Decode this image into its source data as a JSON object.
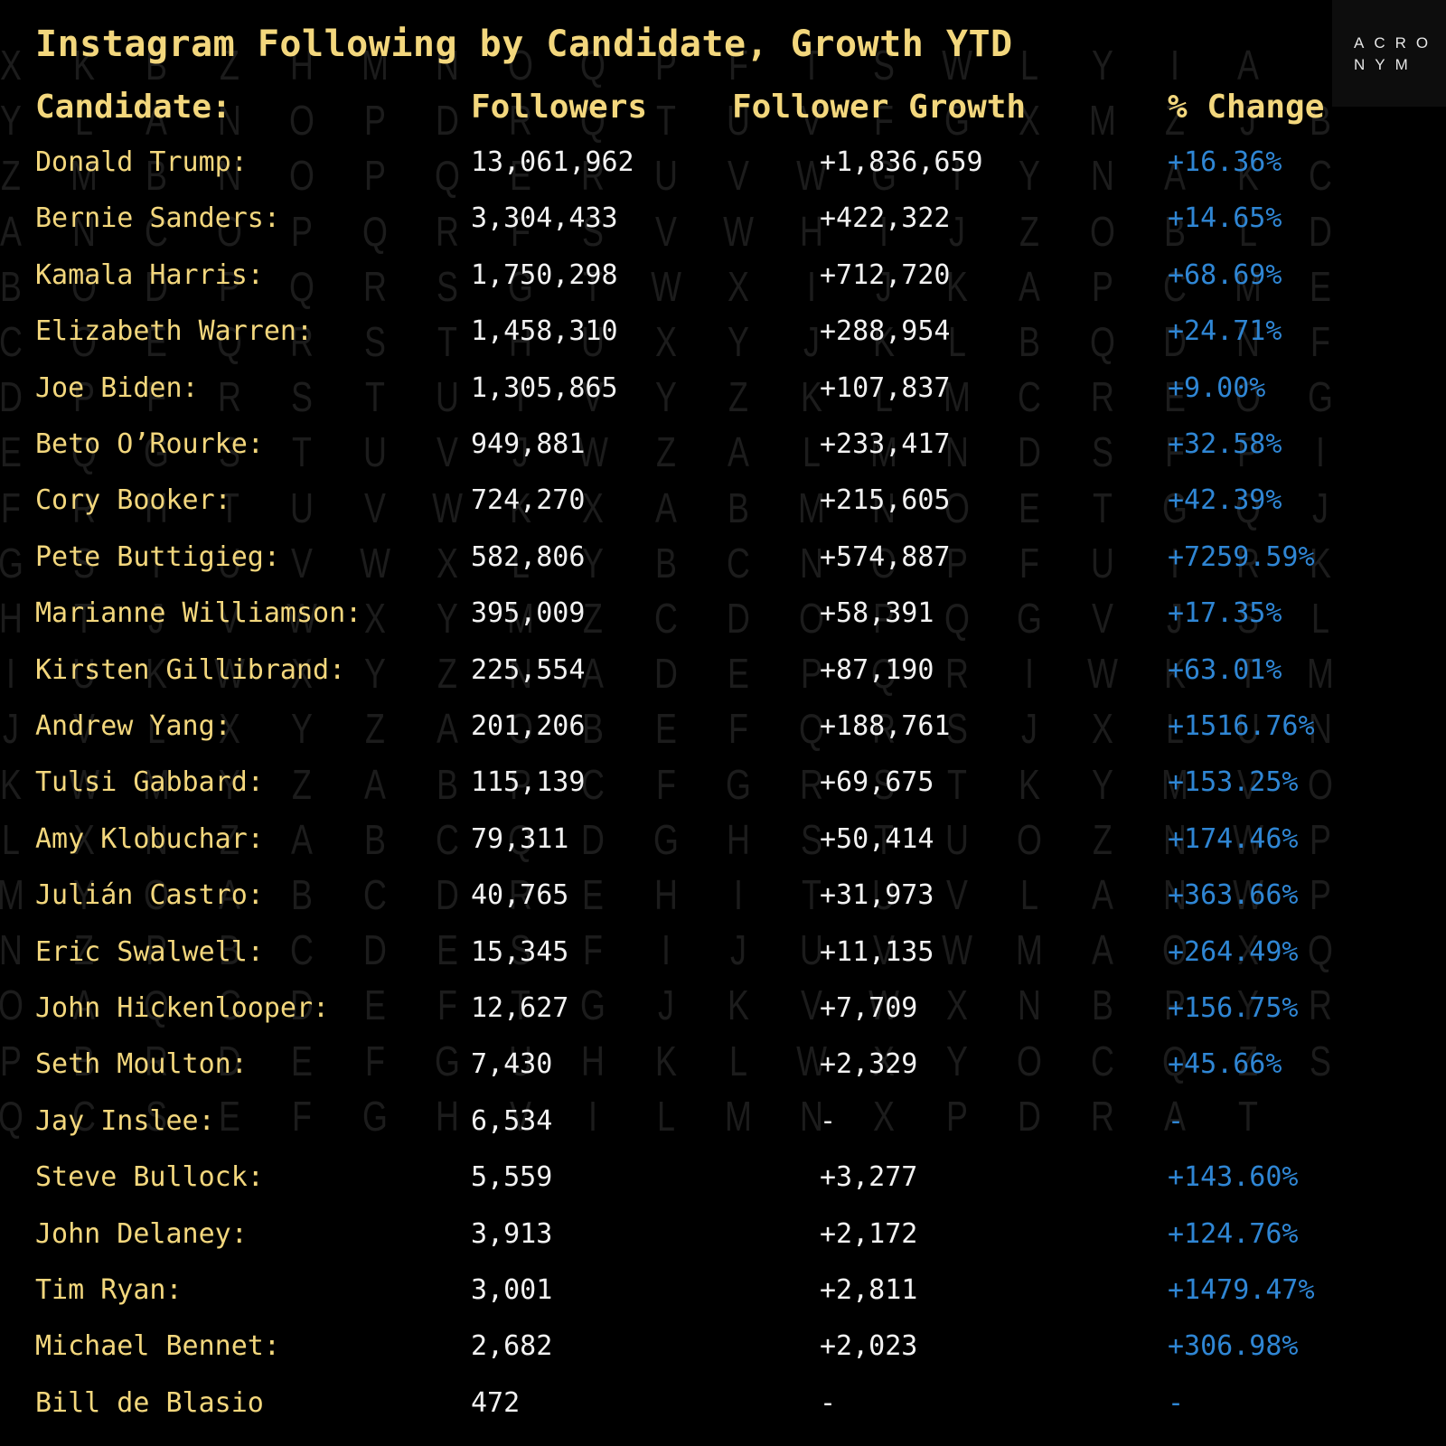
{
  "title": "Instagram Following by Candidate, Growth YTD",
  "logo": {
    "line1": "ACRO",
    "line2": "NYM"
  },
  "columns": {
    "candidate": "Candidate:",
    "followers": "Followers",
    "growth": "Follower Growth",
    "pct": "% Change"
  },
  "rows": [
    {
      "name": "Donald Trump:",
      "followers": "13,061,962",
      "growth": "+1,836,659",
      "pct": "+16.36%"
    },
    {
      "name": "Bernie Sanders:",
      "followers": "3,304,433",
      "growth": "+422,322",
      "pct": "+14.65%"
    },
    {
      "name": "Kamala Harris:",
      "followers": "1,750,298",
      "growth": "+712,720",
      "pct": "+68.69%"
    },
    {
      "name": "Elizabeth Warren:",
      "followers": "1,458,310",
      "growth": "+288,954",
      "pct": "+24.71%"
    },
    {
      "name": "Joe Biden:",
      "followers": "1,305,865",
      "growth": "+107,837",
      "pct": "+9.00%"
    },
    {
      "name": "Beto O’Rourke:",
      "followers": "949,881",
      "growth": "+233,417",
      "pct": "+32.58%"
    },
    {
      "name": "Cory Booker:",
      "followers": "724,270",
      "growth": "+215,605",
      "pct": "+42.39%"
    },
    {
      "name": "Pete Buttigieg:",
      "followers": "582,806",
      "growth": "+574,887",
      "pct": "+7259.59%"
    },
    {
      "name": "Marianne Williamson:",
      "followers": "395,009",
      "growth": "+58,391",
      "pct": "+17.35%"
    },
    {
      "name": "Kirsten Gillibrand:",
      "followers": "225,554",
      "growth": "+87,190",
      "pct": "+63.01%"
    },
    {
      "name": "Andrew Yang:",
      "followers": "201,206",
      "growth": "+188,761",
      "pct": "+1516.76%"
    },
    {
      "name": "Tulsi Gabbard:",
      "followers": "115,139",
      "growth": "+69,675",
      "pct": "+153.25%"
    },
    {
      "name": "Amy Klobuchar:",
      "followers": "79,311",
      "growth": "+50,414",
      "pct": "+174.46%"
    },
    {
      "name": "Julián Castro:",
      "followers": "40,765",
      "growth": "+31,973",
      "pct": "+363.66%"
    },
    {
      "name": "Eric Swalwell:",
      "followers": "15,345",
      "growth": "+11,135",
      "pct": "+264.49%"
    },
    {
      "name": "John Hickenlooper:",
      "followers": "12,627",
      "growth": "+7,709",
      "pct": "+156.75%"
    },
    {
      "name": "Seth Moulton:",
      "followers": "7,430",
      "growth": "+2,329",
      "pct": "+45.66%"
    },
    {
      "name": "Jay Inslee:",
      "followers": "6,534",
      "growth": "-",
      "pct": "-"
    },
    {
      "name": "Steve Bullock:",
      "followers": "5,559",
      "growth": "+3,277",
      "pct": "+143.60%"
    },
    {
      "name": "John Delaney:",
      "followers": "3,913",
      "growth": "+2,172",
      "pct": "+124.76%"
    },
    {
      "name": "Tim Ryan:",
      "followers": "3,001",
      "growth": "+2,811",
      "pct": "+1479.47%"
    },
    {
      "name": "Michael Bennet:",
      "followers": "2,682",
      "growth": "+2,023",
      "pct": "+306.98%"
    },
    {
      "name": "Bill de Blasio",
      "followers": "472",
      "growth": "-",
      "pct": "-"
    }
  ],
  "background_letters": [
    "XKBZHMNOQPFTSWLYIA",
    "YLANOPDRQTUVFGXMZJB",
    "ZMBNOPQERUVWGIYNAKC",
    "ANCOPQRFSVWHIJZOBLD",
    "BODPQRSGTWXIJKAPCME",
    "COEQRSTHUXYJKLBQDNF",
    "DPFRSTUIVYZKLMCREOG",
    "EQGSTUVJWZALMNDSFPI",
    "FRHTUVWKXABMNOETGQJ",
    "GSIUVWXLYBCNOPFUIRK",
    "HTJVWXYMZCDOPQGVJSL",
    "IUKWXYZNADEPQRIWKTM",
    "JVLXYZAOBEFQRSJXLUN",
    "KWMYZABPCFGRSTKYMVO",
    "LXNZABCQDGHSTUOZNWP",
    "MYOABCDREHITUVLANWP",
    "NZPBCDESFIJUVWMAOXQ",
    "OAQCDEFTGJKVWXNBPYR",
    "PBRDEFGUHKLWXYOCQZS",
    "QCSEFGHVILMNXPDRAT"
  ]
}
